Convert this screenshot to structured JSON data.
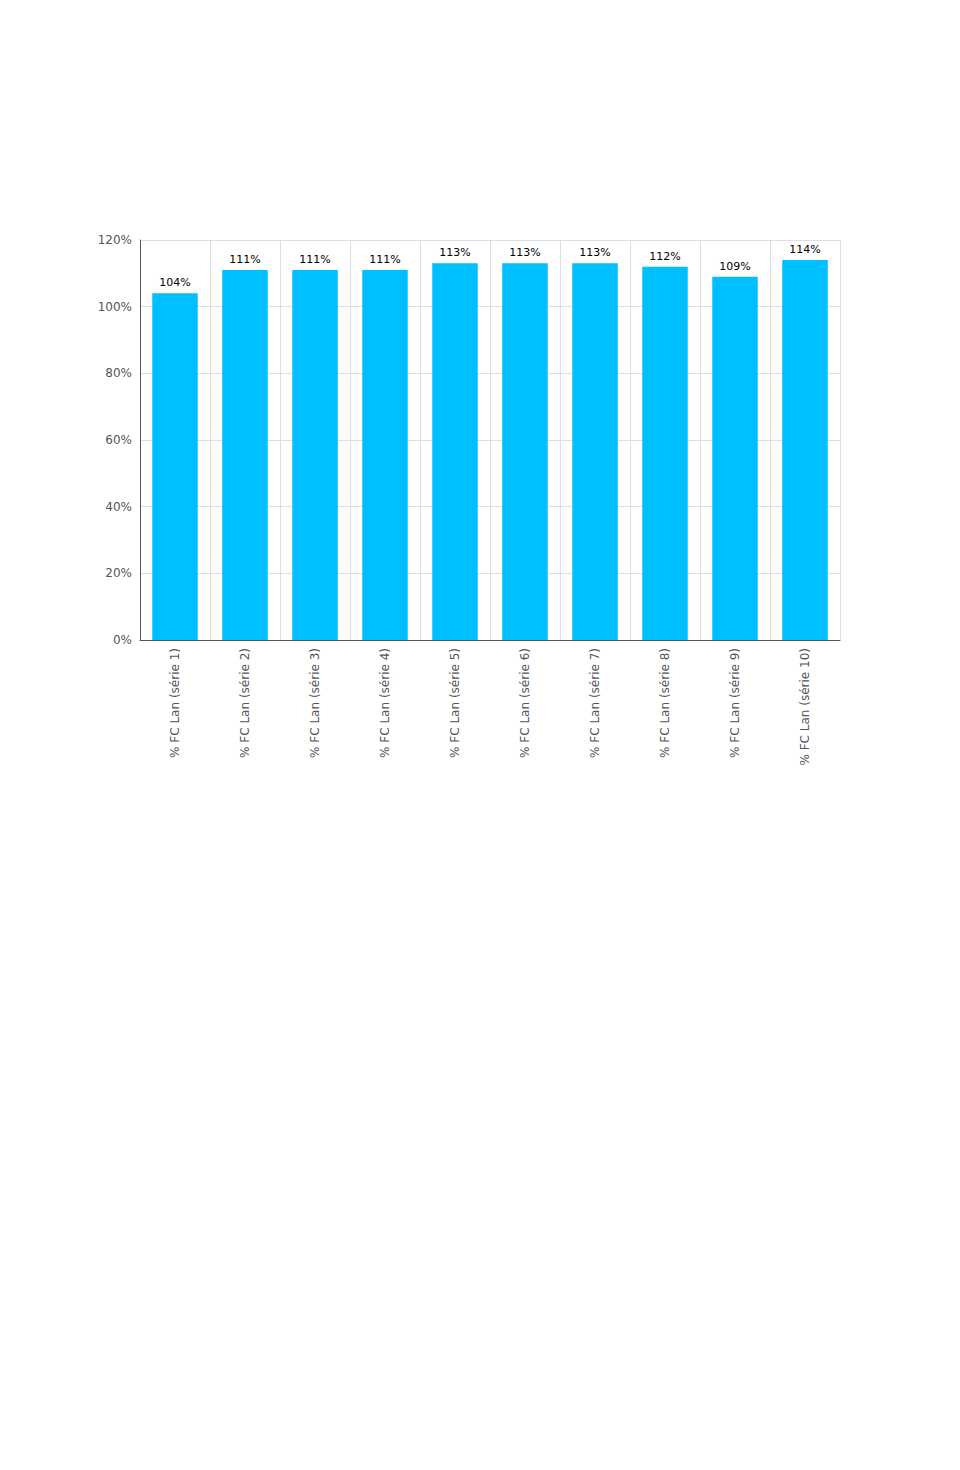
{
  "chart_data": {
    "type": "bar",
    "categories": [
      "% FC Lan (série 1)",
      "% FC Lan (série 2)",
      "% FC Lan (série 3)",
      "% FC Lan (série 4)",
      "% FC Lan (série 5)",
      "% FC Lan (série 6)",
      "% FC Lan (série 7)",
      "% FC Lan (série 8)",
      "% FC Lan (série 9)",
      "% FC Lan (série 10)"
    ],
    "values": [
      1.04,
      1.11,
      1.11,
      1.11,
      1.13,
      1.13,
      1.13,
      1.12,
      1.09,
      1.14
    ],
    "value_labels": [
      "104%",
      "111%",
      "111%",
      "111%",
      "113%",
      "113%",
      "113%",
      "112%",
      "109%",
      "114%"
    ],
    "color": "#00BFFF",
    "ylim": [
      0,
      1.2
    ],
    "yticks": [
      {
        "value": 0.0,
        "label": "0%"
      },
      {
        "value": 0.2,
        "label": "20%"
      },
      {
        "value": 0.4,
        "label": "40%"
      },
      {
        "value": 0.6,
        "label": "60%"
      },
      {
        "value": 0.8,
        "label": "80%"
      },
      {
        "value": 1.0,
        "label": "100%"
      },
      {
        "value": 1.2,
        "label": "120%"
      }
    ],
    "grid": true,
    "data_labels": true
  }
}
